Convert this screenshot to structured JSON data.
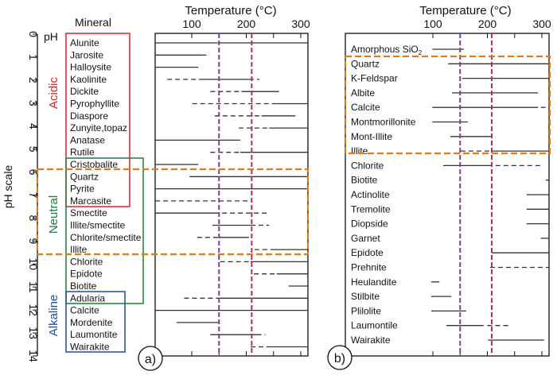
{
  "chart_data": [
    {
      "type": "range",
      "panel_label": "a)",
      "title": "Temperature (°C)",
      "column_header": "Mineral",
      "ylabel": "pH scale",
      "ph_label": "pH",
      "x_ticks": [
        100,
        200,
        300
      ],
      "xlim": [
        33,
        313
      ],
      "ylim": [
        0,
        14
      ],
      "y_ticks": [
        "0",
        "1",
        "2",
        "3",
        "4",
        "5",
        "6",
        "7",
        "8",
        "9",
        "10",
        "11",
        "12",
        "13",
        "14"
      ],
      "reference_lines": [
        {
          "value": 150,
          "color": "#7b3fa0"
        },
        {
          "value": 210,
          "color": "#b0305a"
        }
      ],
      "groups": [
        {
          "name": "Acidic",
          "color": "#d9242b"
        },
        {
          "name": "Neutral",
          "color": "#1f7a3a"
        },
        {
          "name": "Alkaline",
          "color": "#1f4e9c"
        }
      ],
      "highlight_color": "#e07b1a",
      "minerals": [
        {
          "name": "Alunite",
          "segments": [
            [
              33,
              313,
              "solid"
            ]
          ]
        },
        {
          "name": "Jarosite",
          "segments": [
            [
              33,
              118,
              "solid"
            ],
            [
              118,
              132,
              "dashed"
            ]
          ]
        },
        {
          "name": "Halloysite",
          "segments": [
            [
              33,
              112,
              "solid"
            ]
          ]
        },
        {
          "name": "Kaolinite",
          "segments": [
            [
              55,
              113,
              "dashed"
            ],
            [
              113,
              205,
              "solid"
            ],
            [
              205,
              224,
              "dashed"
            ]
          ]
        },
        {
          "name": "Dickite",
          "segments": [
            [
              134,
              191,
              "dashed"
            ],
            [
              191,
              260,
              "solid"
            ]
          ]
        },
        {
          "name": "Pyrophyllite",
          "segments": [
            [
              101,
              256,
              "dashed"
            ],
            [
              256,
              313,
              "solid"
            ]
          ]
        },
        {
          "name": "Diaspore",
          "segments": [
            [
              142,
              228,
              "dashed"
            ],
            [
              228,
              290,
              "solid"
            ]
          ]
        },
        {
          "name": "Zunyite,topaz",
          "segments": [
            [
              186,
              242,
              "dashed"
            ],
            [
              242,
              313,
              "solid"
            ]
          ]
        },
        {
          "name": "Anatase",
          "segments": [
            [
              33,
              189,
              "solid"
            ]
          ]
        },
        {
          "name": "Rutile",
          "segments": [
            [
              134,
              189,
              "dashed"
            ],
            [
              189,
              313,
              "solid"
            ]
          ]
        },
        {
          "name": "Cristobalite",
          "segments": [
            [
              33,
              103,
              "solid"
            ],
            [
              103,
              117,
              "dashed"
            ]
          ]
        },
        {
          "name": "Quartz",
          "segments": [
            [
              96,
              313,
              "solid"
            ]
          ]
        },
        {
          "name": "Pyrite",
          "segments": [
            [
              33,
              313,
              "solid"
            ]
          ]
        },
        {
          "name": "Marcasite",
          "segments": [
            [
              33,
              211,
              "dashed"
            ]
          ]
        },
        {
          "name": "Smectite",
          "segments": [
            [
              33,
              141,
              "solid"
            ],
            [
              141,
              243,
              "dashed"
            ]
          ]
        },
        {
          "name": "Illite/smectite",
          "segments": [
            [
              138,
              208,
              "solid"
            ],
            [
              208,
              242,
              "dashed"
            ]
          ]
        },
        {
          "name": "Chlorite/smectite",
          "segments": [
            [
              110,
              150,
              "dashed"
            ],
            [
              150,
              205,
              "solid"
            ]
          ]
        },
        {
          "name": "Illite",
          "segments": [
            [
              215,
              245,
              "dashed"
            ],
            [
              245,
              313,
              "solid"
            ]
          ]
        },
        {
          "name": "Chlorite",
          "segments": [
            [
              152,
              208,
              "dashed"
            ],
            [
              208,
              313,
              "solid"
            ]
          ]
        },
        {
          "name": "Epidote",
          "segments": [
            [
              214,
              256,
              "dashed"
            ],
            [
              256,
              313,
              "solid"
            ]
          ]
        },
        {
          "name": "Biotite",
          "segments": [
            [
              278,
              313,
              "solid"
            ]
          ]
        },
        {
          "name": "Adularia",
          "segments": [
            [
              86,
              152,
              "dashed"
            ],
            [
              152,
              313,
              "solid"
            ]
          ]
        },
        {
          "name": "Calcite",
          "segments": [
            [
              33,
              313,
              "solid"
            ]
          ]
        },
        {
          "name": "Mordenite",
          "segments": [
            [
              72,
              149,
              "solid"
            ]
          ]
        },
        {
          "name": "Laumontite",
          "segments": [
            [
              134,
              219,
              "solid"
            ],
            [
              219,
              235,
              "dashed"
            ]
          ]
        },
        {
          "name": "Wairakite",
          "segments": [
            [
              208,
              240,
              "dashed"
            ],
            [
              240,
              313,
              "solid"
            ]
          ]
        }
      ]
    },
    {
      "type": "range",
      "panel_label": "b)",
      "title": "Temperature (°C)",
      "x_ticks": [
        100,
        200,
        300
      ],
      "xlim": [
        0,
        313
      ],
      "reference_lines": [
        {
          "value": 150,
          "color": "#7b3fa0"
        },
        {
          "value": 208,
          "color": "#b0305a"
        }
      ],
      "highlight_color": "#e07b1a",
      "minerals": [
        {
          "name": "Amorphous SiO",
          "subscript": "2",
          "segments": [
            [
              99,
              157,
              "solid"
            ]
          ]
        },
        {
          "name": "Quartz",
          "segments": [
            [
              128,
              313,
              "solid"
            ]
          ]
        },
        {
          "name": "K-Feldspar",
          "segments": [
            [
              154,
              313,
              "solid"
            ]
          ]
        },
        {
          "name": "Albite",
          "segments": [
            [
              135,
              293,
              "solid"
            ]
          ]
        },
        {
          "name": "Calcite",
          "segments": [
            [
              99,
              293,
              "solid"
            ],
            [
              298,
              309,
              "dashed"
            ]
          ]
        },
        {
          "name": "Montmorillonite",
          "segments": [
            [
              99,
              164,
              "solid"
            ]
          ]
        },
        {
          "name": "Mont-Illite",
          "segments": [
            [
              132,
              208,
              "solid"
            ]
          ]
        },
        {
          "name": "Illite",
          "segments": [
            [
              151,
              208,
              "dashed"
            ],
            [
              208,
              313,
              "solid"
            ]
          ]
        },
        {
          "name": "Chlorite",
          "segments": [
            [
              119,
              208,
              "solid"
            ],
            [
              215,
              297,
              "dashed"
            ]
          ]
        },
        {
          "name": "Biotite",
          "segments": [
            [
              307,
              313,
              "solid"
            ]
          ]
        },
        {
          "name": "Actinolite",
          "segments": [
            [
              272,
              313,
              "solid"
            ]
          ]
        },
        {
          "name": "Tremolite",
          "segments": [
            [
              272,
              313,
              "solid"
            ]
          ]
        },
        {
          "name": "Diopside",
          "segments": [
            [
              272,
              313,
              "solid"
            ]
          ]
        },
        {
          "name": "Garnet",
          "segments": [
            [
              298,
              313,
              "solid"
            ]
          ]
        },
        {
          "name": "Epidote",
          "segments": [
            [
              208,
              313,
              "solid"
            ]
          ]
        },
        {
          "name": "Prehnite",
          "segments": [
            [
              205,
              313,
              "dashed"
            ]
          ]
        },
        {
          "name": "Heulandite",
          "segments": [
            [
              97,
              112,
              "solid"
            ]
          ]
        },
        {
          "name": "Stilbite",
          "segments": [
            [
              97,
              134,
              "solid"
            ]
          ]
        },
        {
          "name": "Plilolite",
          "segments": [
            [
              97,
              161,
              "solid"
            ]
          ]
        },
        {
          "name": "Laumontile",
          "segments": [
            [
              125,
              193,
              "solid"
            ],
            [
              200,
              240,
              "dashed"
            ]
          ]
        },
        {
          "name": "Wairakite",
          "segments": [
            [
              201,
              304,
              "solid"
            ]
          ]
        }
      ]
    }
  ]
}
